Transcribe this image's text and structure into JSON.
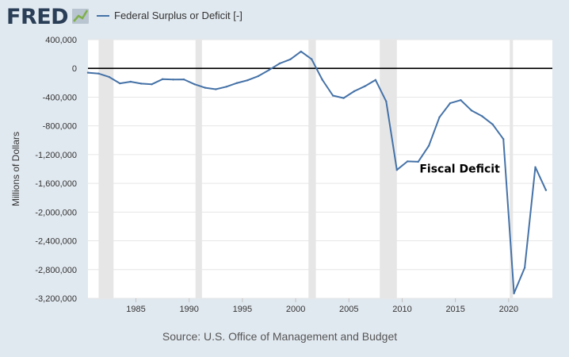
{
  "header": {
    "logo_text": "FRED",
    "logo_icon": "fred-graph-icon",
    "legend_label": "Federal Surplus or Deficit [-]"
  },
  "source_text": "Source: U.S. Office of Management and Budget",
  "colors": {
    "background": "#e1e9f0",
    "plot_background": "#ffffff",
    "series": "#4572a7",
    "recession": "#e6e6e6",
    "zero_line": "#000000",
    "grid": "#e6e6e6",
    "logo_dark": "#2a3f57"
  },
  "chart_data": {
    "type": "line",
    "title": "",
    "xlabel": "",
    "ylabel": "Millions of Dollars",
    "xlim": [
      1980.5,
      2024.1
    ],
    "ylim": [
      -3200000,
      400000
    ],
    "grid": true,
    "x_ticks": [
      1985,
      1990,
      1995,
      2000,
      2005,
      2010,
      2015,
      2020
    ],
    "y_ticks": [
      400000,
      0,
      -400000,
      -800000,
      -1200000,
      -1600000,
      -2000000,
      -2400000,
      -2800000,
      -3200000
    ],
    "y_tick_labels": [
      "400,000",
      "0",
      "-400,000",
      "-800,000",
      "-1,200,000",
      "-1,600,000",
      "-2,000,000",
      "-2,400,000",
      "-2,800,000",
      "-3,200,000"
    ],
    "recessions": [
      [
        1981.5,
        1982.9
      ],
      [
        1990.6,
        1991.2
      ],
      [
        2001.2,
        2001.9
      ],
      [
        2007.9,
        2009.5
      ],
      [
        2020.1,
        2020.4
      ]
    ],
    "reference_line": 0,
    "annotations": [
      {
        "text": "Fiscal Deficit",
        "x": 2015.4,
        "y": -1450000
      }
    ],
    "series": [
      {
        "name": "Federal Surplus or Deficit [-]",
        "x": [
          1980.5,
          1981.5,
          1982.5,
          1983.5,
          1984.5,
          1985.5,
          1986.5,
          1987.5,
          1988.5,
          1989.5,
          1990.5,
          1991.5,
          1992.5,
          1993.5,
          1994.5,
          1995.5,
          1996.5,
          1997.5,
          1998.5,
          1999.5,
          2000.5,
          2001.5,
          2002.5,
          2003.5,
          2004.5,
          2005.5,
          2006.5,
          2007.5,
          2008.5,
          2009.5,
          2010.5,
          2011.5,
          2012.5,
          2013.5,
          2014.5,
          2015.5,
          2016.5,
          2017.5,
          2018.5,
          2019.5,
          2020.5,
          2021.5,
          2022.5,
          2023.5
        ],
        "values": [
          -59000,
          -71000,
          -120000,
          -208000,
          -185000,
          -212000,
          -221000,
          -150000,
          -155000,
          -153000,
          -221000,
          -269000,
          -290000,
          -255000,
          -203000,
          -164000,
          -107000,
          -22000,
          69000,
          126000,
          236000,
          128000,
          -158000,
          -378000,
          -413000,
          -318000,
          -248000,
          -161000,
          -459000,
          -1413000,
          -1294000,
          -1300000,
          -1077000,
          -680000,
          -485000,
          -442000,
          -585000,
          -665000,
          -779000,
          -984000,
          -3132000,
          -2775000,
          -1375000,
          -1695000
        ]
      }
    ]
  }
}
